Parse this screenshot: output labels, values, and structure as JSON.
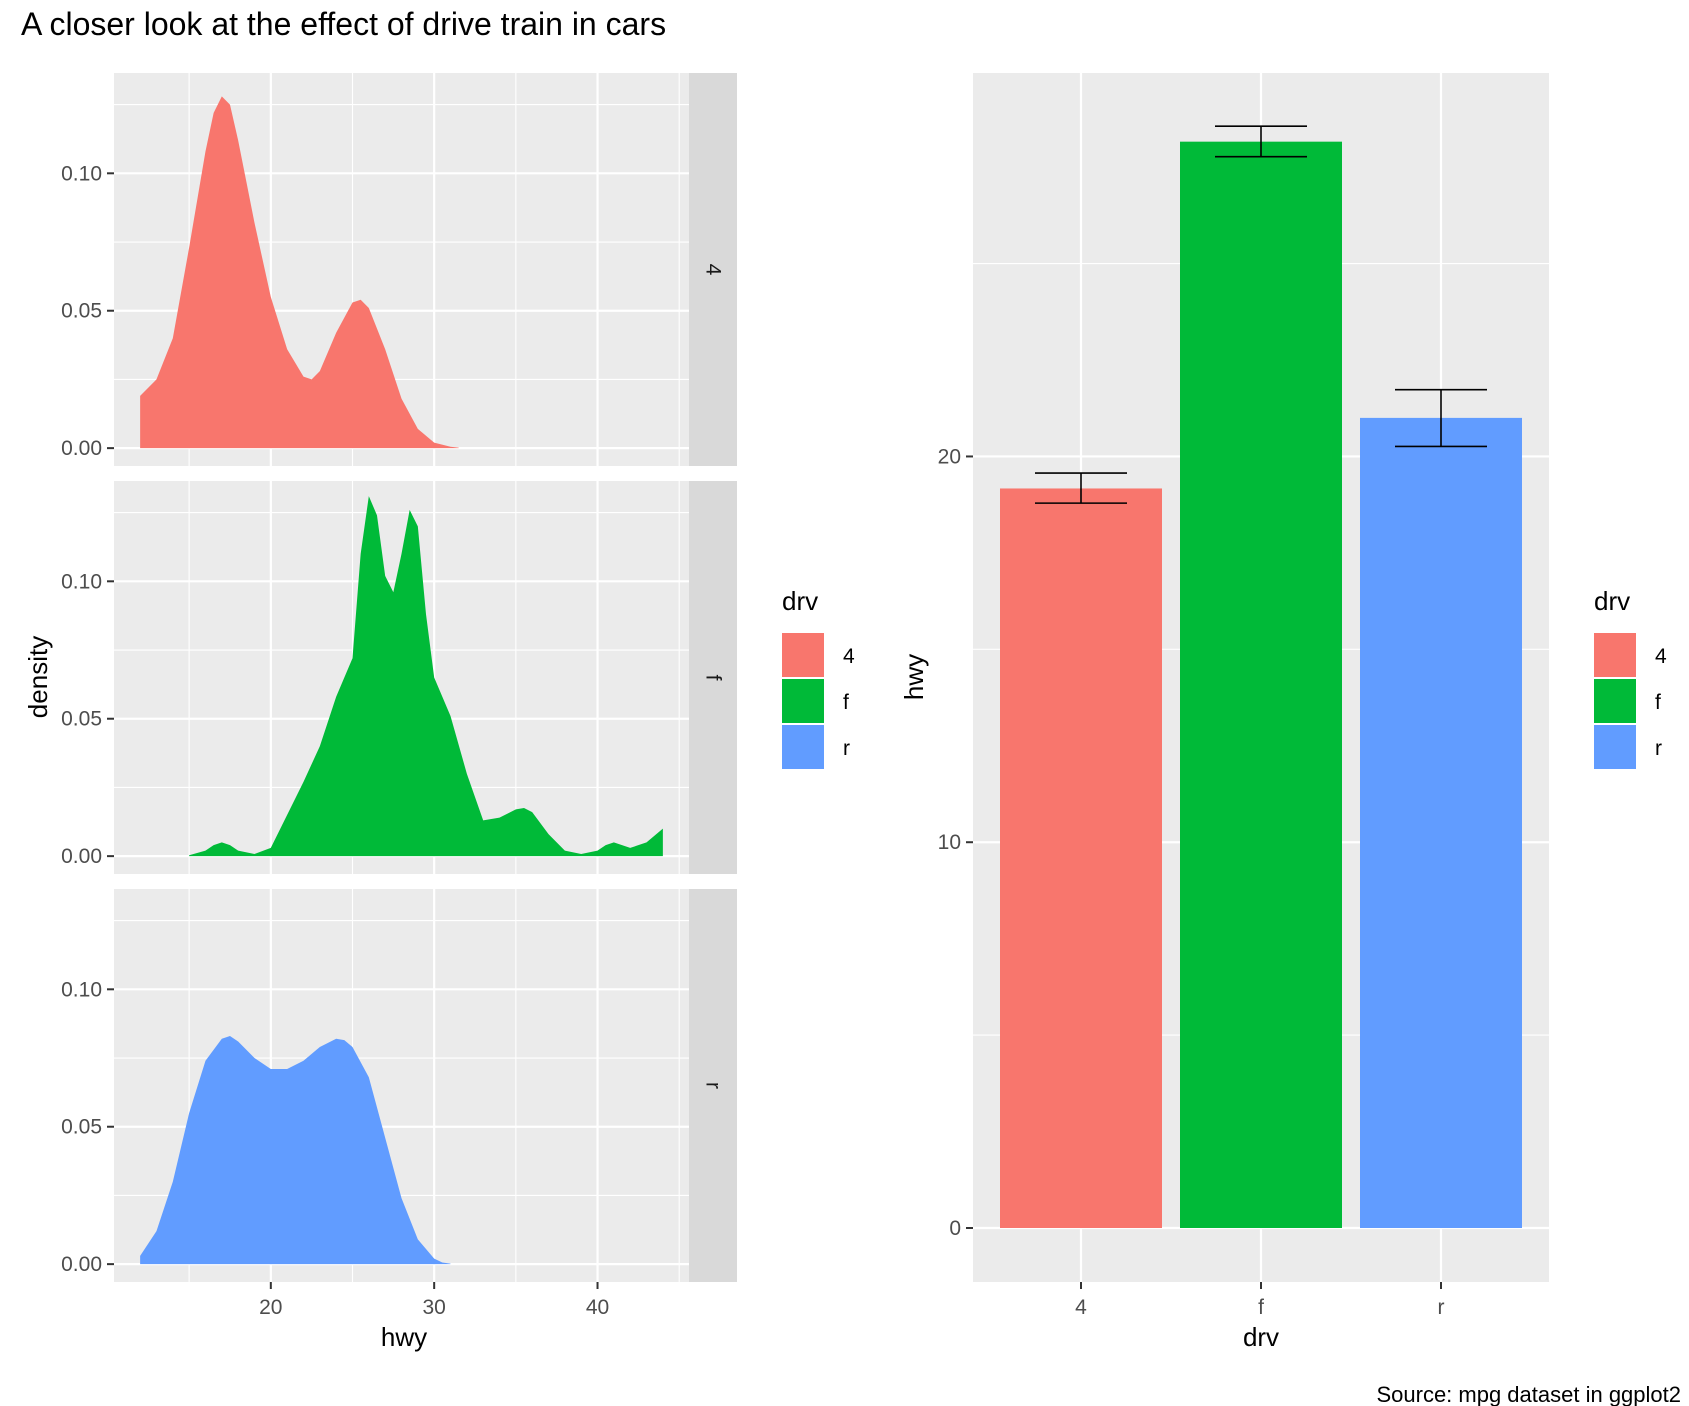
{
  "title": "A closer look at the effect of drive train in cars",
  "caption": "Source: mpg dataset in ggplot2",
  "colors": {
    "4": "#F8766D",
    "f": "#00BA38",
    "r": "#619CFF",
    "panel": "#EBEBEB",
    "strip": "#D9D9D9",
    "grid": "#FFFFFF",
    "tick": "#333333",
    "axis_text": "#4D4D4D",
    "errorbar": "#000000"
  },
  "chart_data": [
    {
      "type": "area",
      "subtype": "faceted density",
      "xlabel": "hwy",
      "ylabel": "density",
      "xlim": [
        10.4,
        45.6
      ],
      "ylim": [
        -0.0065,
        0.1365
      ],
      "xticks": [
        20,
        30,
        40
      ],
      "xtick_labels": [
        "20",
        "30",
        "40"
      ],
      "yticks": [
        0.0,
        0.05,
        0.1
      ],
      "ytick_labels": [
        "0.00",
        "0.05",
        "0.10"
      ],
      "legend": {
        "title": "drv",
        "position": "right",
        "items": [
          "4",
          "f",
          "r"
        ]
      },
      "facets": [
        {
          "label": "4",
          "color_key": "4",
          "x": [
            12,
            13,
            14,
            15,
            16,
            16.5,
            17,
            17.5,
            18,
            18.5,
            19,
            20,
            21,
            22,
            22.5,
            23,
            24,
            25,
            25.5,
            26,
            27,
            28,
            29,
            30,
            31,
            31.5
          ],
          "density": [
            0.019,
            0.025,
            0.04,
            0.073,
            0.108,
            0.122,
            0.128,
            0.125,
            0.112,
            0.097,
            0.082,
            0.055,
            0.036,
            0.026,
            0.025,
            0.028,
            0.042,
            0.053,
            0.054,
            0.051,
            0.036,
            0.018,
            0.007,
            0.002,
            0.0005,
            0.0002
          ]
        },
        {
          "label": "f",
          "color_key": "f",
          "x": [
            15,
            16,
            16.5,
            17,
            17.5,
            18,
            19,
            20,
            21,
            22,
            23,
            24,
            25,
            25.5,
            26,
            26.5,
            27,
            27.5,
            28,
            28.5,
            29,
            29.5,
            30,
            31,
            32,
            33,
            34,
            35,
            35.5,
            36,
            37,
            38,
            39,
            40,
            40.5,
            41,
            41.5,
            42,
            43,
            44
          ],
          "density": [
            0.0003,
            0.002,
            0.004,
            0.005,
            0.004,
            0.002,
            0.0008,
            0.003,
            0.015,
            0.027,
            0.04,
            0.058,
            0.072,
            0.11,
            0.131,
            0.124,
            0.102,
            0.096,
            0.11,
            0.126,
            0.12,
            0.088,
            0.065,
            0.051,
            0.03,
            0.013,
            0.014,
            0.017,
            0.0175,
            0.016,
            0.008,
            0.002,
            0.0008,
            0.002,
            0.004,
            0.005,
            0.004,
            0.003,
            0.005,
            0.01
          ]
        },
        {
          "label": "r",
          "color_key": "r",
          "x": [
            12,
            13,
            14,
            15,
            16,
            17,
            17.5,
            18,
            19,
            20,
            21,
            22,
            23,
            24,
            24.5,
            25,
            26,
            27,
            28,
            29,
            30,
            30.5,
            31
          ],
          "density": [
            0.003,
            0.012,
            0.03,
            0.055,
            0.074,
            0.082,
            0.083,
            0.081,
            0.075,
            0.071,
            0.071,
            0.074,
            0.079,
            0.082,
            0.0815,
            0.079,
            0.068,
            0.046,
            0.024,
            0.009,
            0.002,
            0.0006,
            0.0002
          ]
        }
      ]
    },
    {
      "type": "bar",
      "subtype": "bar with error bars",
      "xlabel": "drv",
      "ylabel": "hwy",
      "categories": [
        "4",
        "f",
        "r"
      ],
      "values": [
        19.17,
        28.16,
        21.0
      ],
      "errors_low": [
        18.79,
        27.77,
        20.26
      ],
      "errors_high": [
        19.57,
        28.56,
        21.73
      ],
      "ylim": [
        -1.4,
        29.94
      ],
      "yticks": [
        0,
        10,
        20
      ],
      "ytick_labels": [
        "0",
        "10",
        "20"
      ],
      "legend": {
        "title": "drv",
        "position": "right",
        "items": [
          "4",
          "f",
          "r"
        ]
      }
    }
  ]
}
